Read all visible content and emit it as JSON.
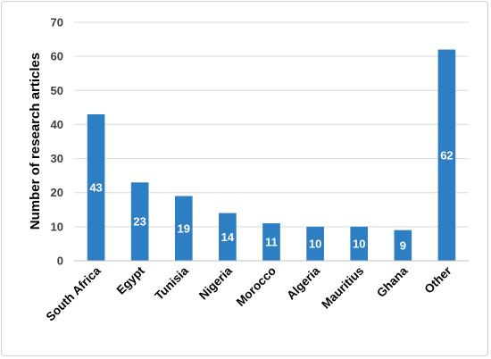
{
  "chart_data": {
    "type": "bar",
    "categories": [
      "South Africa",
      "Egypt",
      "Tunisia",
      "Nigeria",
      "Morocco",
      "Algeria",
      "Mauritius",
      "Ghana",
      "Other"
    ],
    "values": [
      43,
      23,
      19,
      14,
      11,
      10,
      10,
      9,
      62
    ],
    "data_labels": [
      "43",
      "23",
      "19",
      "14",
      "11",
      "10",
      "10",
      "9",
      "62"
    ],
    "title": "",
    "xlabel": "",
    "ylabel": "Number of research articles",
    "ylim": [
      0,
      70
    ],
    "yticks": [
      0,
      10,
      20,
      30,
      40,
      50,
      60,
      70
    ],
    "grid": true,
    "legend": "none",
    "bar_color": "#2e7ec4",
    "grid_color": "#d9d9d9"
  }
}
